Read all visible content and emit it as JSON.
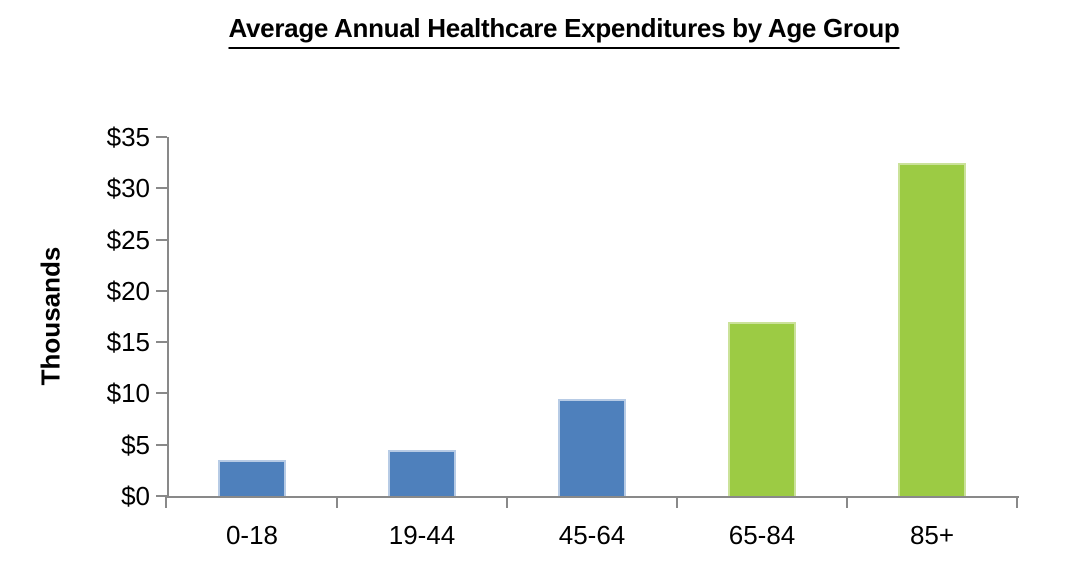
{
  "chart_data": {
    "type": "bar",
    "title": "Average Annual Healthcare Expenditures by Age Group",
    "ylabel": "Thousands",
    "xlabel": "",
    "categories": [
      "0-18",
      "19-44",
      "45-64",
      "65-84",
      "85+"
    ],
    "values": [
      3.5,
      4.5,
      9.5,
      17,
      32.5
    ],
    "units": "thousands of dollars per year",
    "y_tick_labels": [
      "$0",
      "$5",
      "$10",
      "$15",
      "$20",
      "$25",
      "$30",
      "$35"
    ],
    "ylim": [
      0,
      35
    ],
    "y_tick_step": 5,
    "grid": false,
    "legend": "none",
    "bar_fill_colors": [
      "#4E80BC",
      "#4E80BC",
      "#4E80BC",
      "#9CCB44",
      "#9CCB44"
    ],
    "bar_edge_colors": [
      "#B7CBE5",
      "#B7CBE5",
      "#B7CBE5",
      "#CBE29A",
      "#CBE29A"
    ]
  },
  "colors": {
    "series_blue": "#4E80BC",
    "series_green": "#9CCB44",
    "axis_line": "#898989",
    "text": "#000000"
  }
}
